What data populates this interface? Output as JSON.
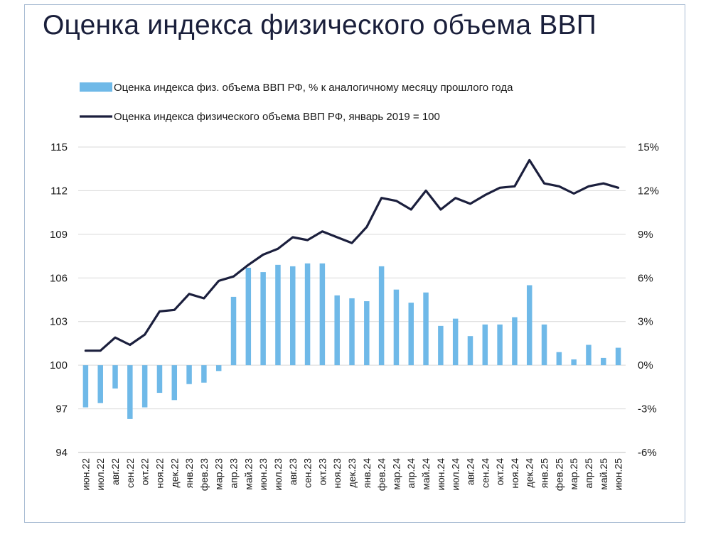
{
  "title": "Оценка индекса физического объема ВВП",
  "colors": {
    "bar": "#6fb9e8",
    "line": "#1b1f3d",
    "grid": "#d9d9d9",
    "axis": "#bfbfbf"
  },
  "chart_data": {
    "type": "bar+line",
    "categories": [
      "июн.22",
      "июл.22",
      "авг.22",
      "сен.22",
      "окт.22",
      "ноя.22",
      "дек.22",
      "янв.23",
      "фев.23",
      "мар.23",
      "апр.23",
      "май.23",
      "июн.23",
      "июл.23",
      "авг.23",
      "сен.23",
      "окт.23",
      "ноя.23",
      "дек.23",
      "янв.24",
      "фев.24",
      "мар.24",
      "апр.24",
      "май.24",
      "июн.24",
      "июл.24",
      "авг.24",
      "сен.24",
      "окт.24",
      "ноя.24",
      "дек.24",
      "янв.25",
      "фев.25",
      "мар.25",
      "апр.25",
      "май.25",
      "июн.25"
    ],
    "series": [
      {
        "name": "Оценка индекса физ. объема ВВП РФ, % к аналогичному месяцу прошлого года",
        "type": "bar",
        "axis": "right",
        "values": [
          -2.9,
          -2.6,
          -1.6,
          -3.7,
          -2.9,
          -1.9,
          -2.4,
          -1.3,
          -1.2,
          -0.4,
          4.7,
          6.7,
          6.4,
          6.9,
          6.8,
          7.0,
          7.0,
          4.8,
          4.6,
          4.4,
          6.8,
          5.2,
          4.3,
          5.0,
          2.7,
          3.2,
          2.0,
          2.8,
          2.8,
          3.3,
          5.5,
          2.8,
          0.9,
          0.4,
          1.4,
          0.5,
          1.2
        ]
      },
      {
        "name": "Оценка индекса физического объема ВВП РФ, январь 2019 = 100",
        "type": "line",
        "axis": "left",
        "values": [
          101.0,
          101.0,
          101.9,
          101.4,
          102.1,
          103.7,
          103.8,
          104.9,
          104.6,
          105.8,
          106.1,
          106.9,
          107.6,
          108.0,
          108.8,
          108.6,
          109.2,
          108.8,
          108.4,
          109.5,
          111.5,
          111.3,
          110.7,
          112.0,
          110.7,
          111.5,
          111.1,
          111.7,
          112.2,
          112.3,
          114.1,
          112.5,
          112.3,
          111.8,
          112.3,
          112.5,
          112.2
        ]
      }
    ],
    "y_left": {
      "min": 94,
      "max": 115,
      "ticks": [
        "94",
        "97",
        "100",
        "103",
        "106",
        "109",
        "112",
        "115"
      ]
    },
    "y_right": {
      "min": -6,
      "max": 15,
      "ticks": [
        "-6%",
        "-3%",
        "0%",
        "3%",
        "6%",
        "9%",
        "12%",
        "15%"
      ]
    },
    "grid": true,
    "legend": "top"
  }
}
